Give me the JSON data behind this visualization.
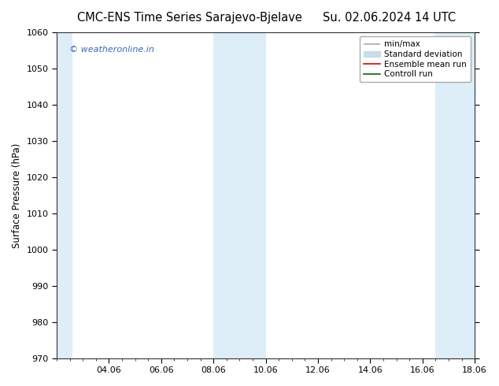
{
  "title_left": "CMC-ENS Time Series Sarajevo-Bjelave",
  "title_right": "Su. 02.06.2024 14 UTC",
  "ylabel": "Surface Pressure (hPa)",
  "ylim": [
    970,
    1060
  ],
  "yticks": [
    970,
    980,
    990,
    1000,
    1010,
    1020,
    1030,
    1040,
    1050,
    1060
  ],
  "xlim": [
    0,
    16
  ],
  "xtick_labels": [
    "04.06",
    "06.06",
    "08.06",
    "10.06",
    "12.06",
    "14.06",
    "16.06",
    "18.06"
  ],
  "xtick_positions": [
    2,
    4,
    6,
    8,
    10,
    12,
    14,
    16
  ],
  "shaded_bands": [
    {
      "x_start": 0,
      "x_end": 0.6,
      "color": "#ddeef8"
    },
    {
      "x_start": 6,
      "x_end": 8,
      "color": "#ddeef8"
    },
    {
      "x_start": 14.5,
      "x_end": 16,
      "color": "#ddeef8"
    }
  ],
  "watermark": "© weatheronline.in",
  "watermark_color": "#3a6ab0",
  "background_color": "#ffffff",
  "title_fontsize": 10.5,
  "axis_fontsize": 8.5,
  "tick_fontsize": 8,
  "legend_fontsize": 7.5
}
